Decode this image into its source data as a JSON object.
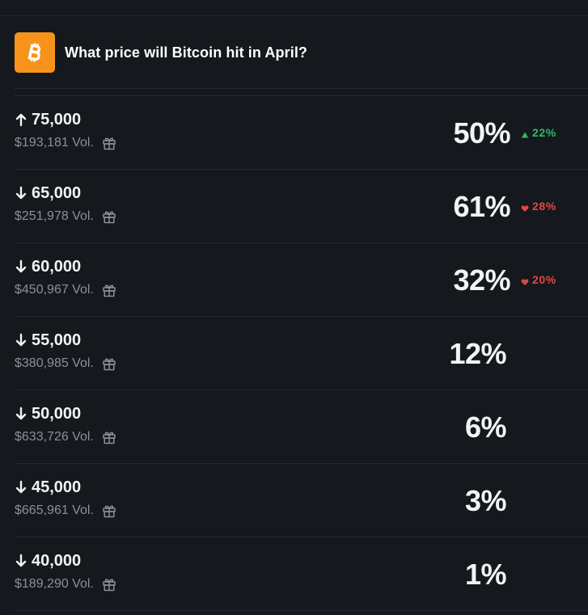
{
  "market": {
    "title": "What price will Bitcoin hit in April?",
    "logo_icon": "bitcoin-icon",
    "logo_color": "#f7931a"
  },
  "colors": {
    "background": "#15181c",
    "up": "#2fb86a",
    "down": "#e0464b",
    "muted": "#8b9198"
  },
  "outcomes": [
    {
      "direction": "up",
      "label": "75,000",
      "volume": "$193,181 Vol.",
      "percent": "50%",
      "change_direction": "up",
      "change": "22%"
    },
    {
      "direction": "down",
      "label": "65,000",
      "volume": "$251,978 Vol.",
      "percent": "61%",
      "change_direction": "down",
      "change": "28%"
    },
    {
      "direction": "down",
      "label": "60,000",
      "volume": "$450,967 Vol.",
      "percent": "32%",
      "change_direction": "down",
      "change": "20%"
    },
    {
      "direction": "down",
      "label": "55,000",
      "volume": "$380,985 Vol.",
      "percent": "12%",
      "change_direction": null,
      "change": null
    },
    {
      "direction": "down",
      "label": "50,000",
      "volume": "$633,726 Vol.",
      "percent": "6%",
      "change_direction": null,
      "change": null
    },
    {
      "direction": "down",
      "label": "45,000",
      "volume": "$665,961 Vol.",
      "percent": "3%",
      "change_direction": null,
      "change": null
    },
    {
      "direction": "down",
      "label": "40,000",
      "volume": "$189,290 Vol.",
      "percent": "1%",
      "change_direction": null,
      "change": null
    }
  ]
}
